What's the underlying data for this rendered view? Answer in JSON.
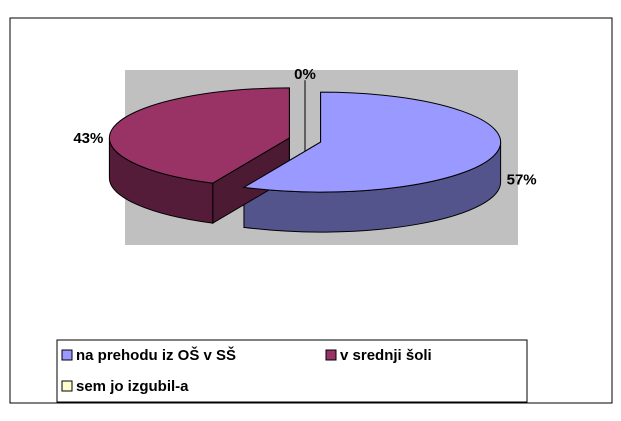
{
  "chart_data": {
    "type": "pie",
    "categories": [
      "na prehodu iz OŠ v SŠ",
      "v srednji šoli",
      "sem jo izgubil-a"
    ],
    "values": [
      57,
      43,
      0
    ],
    "value_labels": [
      "57%",
      "43%",
      "0%"
    ],
    "colors": [
      "#9999ff",
      "#993366",
      "#ffffcc"
    ],
    "legend": "bottom"
  }
}
